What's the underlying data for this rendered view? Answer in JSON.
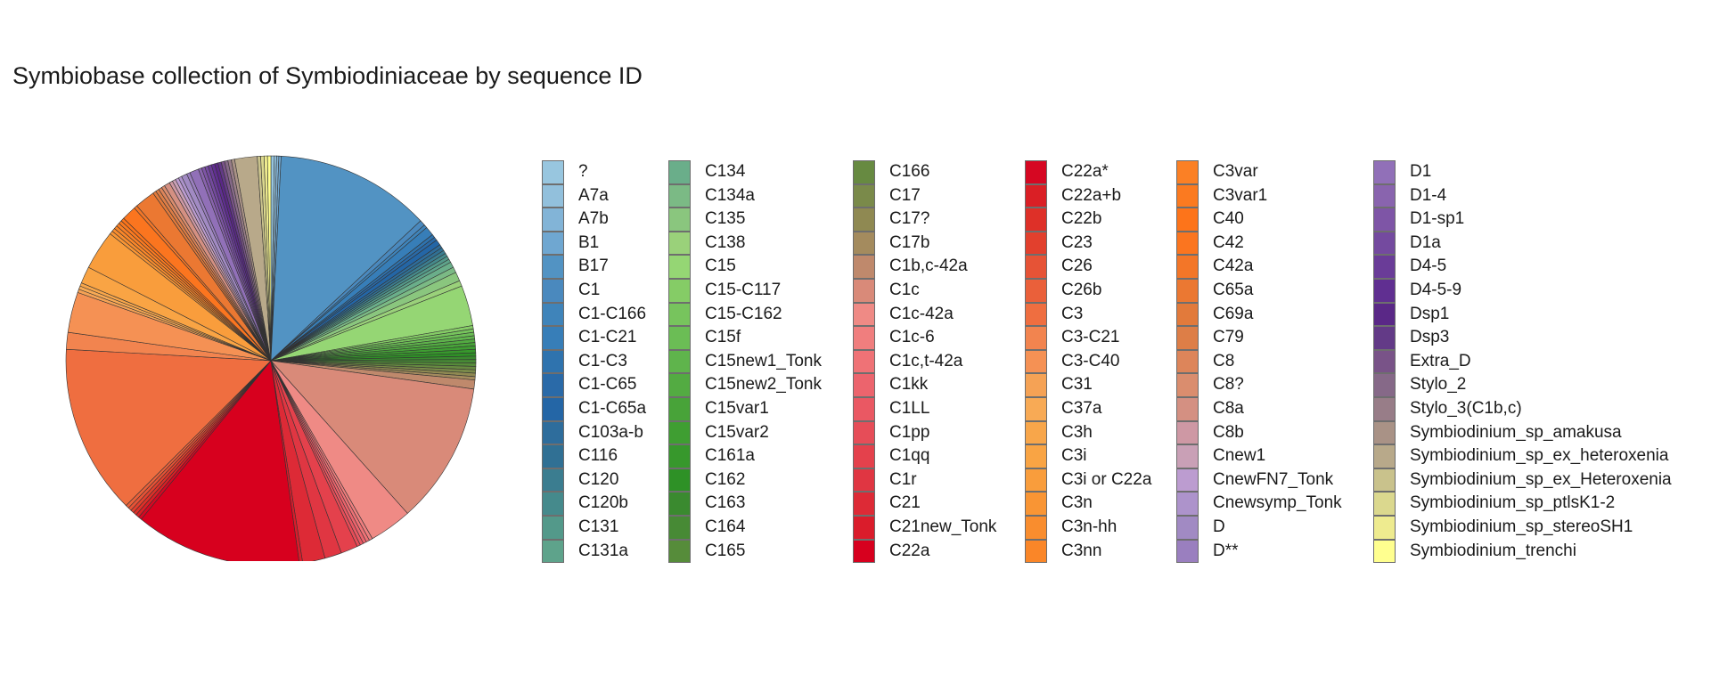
{
  "chart_data": {
    "type": "pie",
    "title": "Symbiobase collection of Symbiodiniaceae by sequence ID",
    "start_angle_deg": 90,
    "direction": "clockwise",
    "legend_position": "right",
    "legend_columns": 6,
    "slices": [
      {
        "label": "?",
        "value": 0.3,
        "color": "#98c6df"
      },
      {
        "label": "A7a",
        "value": 0.2,
        "color": "#92c0dc"
      },
      {
        "label": "A7b",
        "value": 0.2,
        "color": "#82b4d7"
      },
      {
        "label": "B1",
        "value": 0.2,
        "color": "#6fa7d1"
      },
      {
        "label": "B17",
        "value": 13.8,
        "color": "#5293c3"
      },
      {
        "label": "C1",
        "value": 0.5,
        "color": "#4a89be"
      },
      {
        "label": "C1-C166",
        "value": 0.3,
        "color": "#3f84ba"
      },
      {
        "label": "C1-C21",
        "value": 0.8,
        "color": "#377eb8"
      },
      {
        "label": "C1-C3",
        "value": 0.3,
        "color": "#2f73ae"
      },
      {
        "label": "C1-C65",
        "value": 0.3,
        "color": "#2a6aa8"
      },
      {
        "label": "C1-C65a",
        "value": 0.5,
        "color": "#2466a6"
      },
      {
        "label": "C103a-b",
        "value": 0.3,
        "color": "#2e6d9c"
      },
      {
        "label": "C116",
        "value": 0.3,
        "color": "#307094"
      },
      {
        "label": "C120",
        "value": 0.3,
        "color": "#3b7d90"
      },
      {
        "label": "C120b",
        "value": 0.3,
        "color": "#458a8c"
      },
      {
        "label": "C131",
        "value": 0.3,
        "color": "#53998a"
      },
      {
        "label": "C131a",
        "value": 0.3,
        "color": "#5ea38b"
      },
      {
        "label": "C134",
        "value": 0.5,
        "color": "#6aae8a"
      },
      {
        "label": "C134a",
        "value": 0.5,
        "color": "#7bba85"
      },
      {
        "label": "C135",
        "value": 0.8,
        "color": "#8ac67e"
      },
      {
        "label": "C138",
        "value": 0.5,
        "color": "#9ad17a"
      },
      {
        "label": "C15",
        "value": 3.6,
        "color": "#95d674"
      },
      {
        "label": "C15-C117",
        "value": 0.3,
        "color": "#85cc66"
      },
      {
        "label": "C15-C162",
        "value": 0.3,
        "color": "#77c45d"
      },
      {
        "label": "C15f",
        "value": 0.3,
        "color": "#6bbd55"
      },
      {
        "label": "C15new1_Tonk",
        "value": 0.3,
        "color": "#5fb44c"
      },
      {
        "label": "C15new2_Tonk",
        "value": 0.3,
        "color": "#53ab42"
      },
      {
        "label": "C15var1",
        "value": 0.3,
        "color": "#48a339"
      },
      {
        "label": "C15var2",
        "value": 0.3,
        "color": "#3f9e32"
      },
      {
        "label": "C161a",
        "value": 0.3,
        "color": "#37982c"
      },
      {
        "label": "C162",
        "value": 0.3,
        "color": "#2e9126"
      },
      {
        "label": "C163",
        "value": 0.3,
        "color": "#3a8a2f"
      },
      {
        "label": "C164",
        "value": 0.3,
        "color": "#478a35"
      },
      {
        "label": "C165",
        "value": 0.3,
        "color": "#568c3a"
      },
      {
        "label": "C166",
        "value": 0.3,
        "color": "#678a41"
      },
      {
        "label": "C17",
        "value": 0.3,
        "color": "#7a8a4a"
      },
      {
        "label": "C17?",
        "value": 0.3,
        "color": "#8f8952"
      },
      {
        "label": "C17b",
        "value": 0.3,
        "color": "#a48b5e"
      },
      {
        "label": "C1b,c-42a",
        "value": 0.8,
        "color": "#bf896c"
      },
      {
        "label": "C1c",
        "value": 12.6,
        "color": "#d98a79"
      },
      {
        "label": "C1c-42a",
        "value": 3.8,
        "color": "#ef8a85"
      },
      {
        "label": "C1c-6",
        "value": 0.3,
        "color": "#f07e7e"
      },
      {
        "label": "C1c,t-42a",
        "value": 0.3,
        "color": "#ef7276"
      },
      {
        "label": "C1kk",
        "value": 0.3,
        "color": "#ec646d"
      },
      {
        "label": "C1LL",
        "value": 0.3,
        "color": "#ea5863"
      },
      {
        "label": "C1pp",
        "value": 0.3,
        "color": "#e64d58"
      },
      {
        "label": "C1qq",
        "value": 1.5,
        "color": "#e4414c"
      },
      {
        "label": "C1r",
        "value": 1.5,
        "color": "#e03642"
      },
      {
        "label": "C21",
        "value": 2.0,
        "color": "#dd2a36"
      },
      {
        "label": "C21new_Tonk",
        "value": 0.3,
        "color": "#da1c2b"
      },
      {
        "label": "C22a",
        "value": 14.8,
        "color": "#d7001e"
      },
      {
        "label": "C22a*",
        "value": 0.3,
        "color": "#d60722"
      },
      {
        "label": "C22a+b",
        "value": 0.3,
        "color": "#da1f25"
      },
      {
        "label": "C22b",
        "value": 0.3,
        "color": "#de3028"
      },
      {
        "label": "C23",
        "value": 0.3,
        "color": "#e2402d"
      },
      {
        "label": "C26",
        "value": 0.3,
        "color": "#e65336"
      },
      {
        "label": "C26b",
        "value": 0.3,
        "color": "#ea603a"
      },
      {
        "label": "C3",
        "value": 15.1,
        "color": "#ef6e40"
      },
      {
        "label": "C3-C21",
        "value": 1.5,
        "color": "#f2844f"
      },
      {
        "label": "C3-C40",
        "value": 3.6,
        "color": "#f59154"
      },
      {
        "label": "C31",
        "value": 0.3,
        "color": "#f5a255"
      },
      {
        "label": "C37a",
        "value": 0.3,
        "color": "#f8aa55"
      },
      {
        "label": "C3h",
        "value": 0.3,
        "color": "#f8a64a"
      },
      {
        "label": "C3i",
        "value": 1.5,
        "color": "#f9a444"
      },
      {
        "label": "C3i or C22a",
        "value": 3.5,
        "color": "#f99d3c"
      },
      {
        "label": "C3n",
        "value": 0.3,
        "color": "#f99534"
      },
      {
        "label": "C3n-hh",
        "value": 0.3,
        "color": "#f98d2e"
      },
      {
        "label": "C3nn",
        "value": 0.3,
        "color": "#fa8628"
      },
      {
        "label": "C3var",
        "value": 0.3,
        "color": "#fb8025"
      },
      {
        "label": "C3var1",
        "value": 0.3,
        "color": "#fb7a20"
      },
      {
        "label": "C40",
        "value": 0.3,
        "color": "#fd741a"
      },
      {
        "label": "C42",
        "value": 1.3,
        "color": "#fb751f"
      },
      {
        "label": "C42a",
        "value": 0.3,
        "color": "#f37628"
      },
      {
        "label": "C65a",
        "value": 1.8,
        "color": "#eb7832"
      },
      {
        "label": "C69a",
        "value": 0.3,
        "color": "#e27a3b"
      },
      {
        "label": "C79",
        "value": 0.3,
        "color": "#dd7e47"
      },
      {
        "label": "C8",
        "value": 0.3,
        "color": "#dd855a"
      },
      {
        "label": "C8?",
        "value": 0.3,
        "color": "#da8d6e"
      },
      {
        "label": "C8a",
        "value": 0.5,
        "color": "#d49082"
      },
      {
        "label": "C8b",
        "value": 0.3,
        "color": "#ce98a4"
      },
      {
        "label": "Cnew1",
        "value": 0.3,
        "color": "#c9a0b6"
      },
      {
        "label": "CnewFN7_Tonk",
        "value": 0.3,
        "color": "#bc9cd0"
      },
      {
        "label": "Cnewsymp_Tonk",
        "value": 0.3,
        "color": "#ad93cb"
      },
      {
        "label": "D",
        "value": 0.5,
        "color": "#a18ac3"
      },
      {
        "label": "D**",
        "value": 0.3,
        "color": "#9a7fbf"
      },
      {
        "label": "D1",
        "value": 0.8,
        "color": "#9170b8"
      },
      {
        "label": "D1-4",
        "value": 0.3,
        "color": "#8964ae"
      },
      {
        "label": "D1-sp1",
        "value": 0.3,
        "color": "#7e55a6"
      },
      {
        "label": "D1a",
        "value": 0.3,
        "color": "#744a9f"
      },
      {
        "label": "D4-5",
        "value": 0.3,
        "color": "#6a3c98"
      },
      {
        "label": "D4-5-9",
        "value": 0.3,
        "color": "#602f91"
      },
      {
        "label": "Dsp1",
        "value": 0.3,
        "color": "#5a2887"
      },
      {
        "label": "Dsp3",
        "value": 0.3,
        "color": "#633a87"
      },
      {
        "label": "Extra_D",
        "value": 0.3,
        "color": "#795388"
      },
      {
        "label": "Stylo_2",
        "value": 0.3,
        "color": "#866988"
      },
      {
        "label": "Stylo_3(C1b,c)",
        "value": 0.3,
        "color": "#987d88"
      },
      {
        "label": "Symbiodinium_sp_amakusa",
        "value": 0.3,
        "color": "#a99286"
      },
      {
        "label": "Symbiodinium_sp_ex_heteroxenia",
        "value": 2.0,
        "color": "#b8a98a"
      },
      {
        "label": "Symbiodinium_sp_ex_Heteroxenia",
        "value": 0.3,
        "color": "#c9c28c"
      },
      {
        "label": "Symbiodinium_sp_ptlsK1-2",
        "value": 0.3,
        "color": "#dbd88e"
      },
      {
        "label": "Symbiodinium_sp_stereoSH1",
        "value": 0.3,
        "color": "#eeeb8f"
      },
      {
        "label": "Symbiodinium_trenchi",
        "value": 0.3,
        "color": "#ffff8f"
      }
    ]
  }
}
